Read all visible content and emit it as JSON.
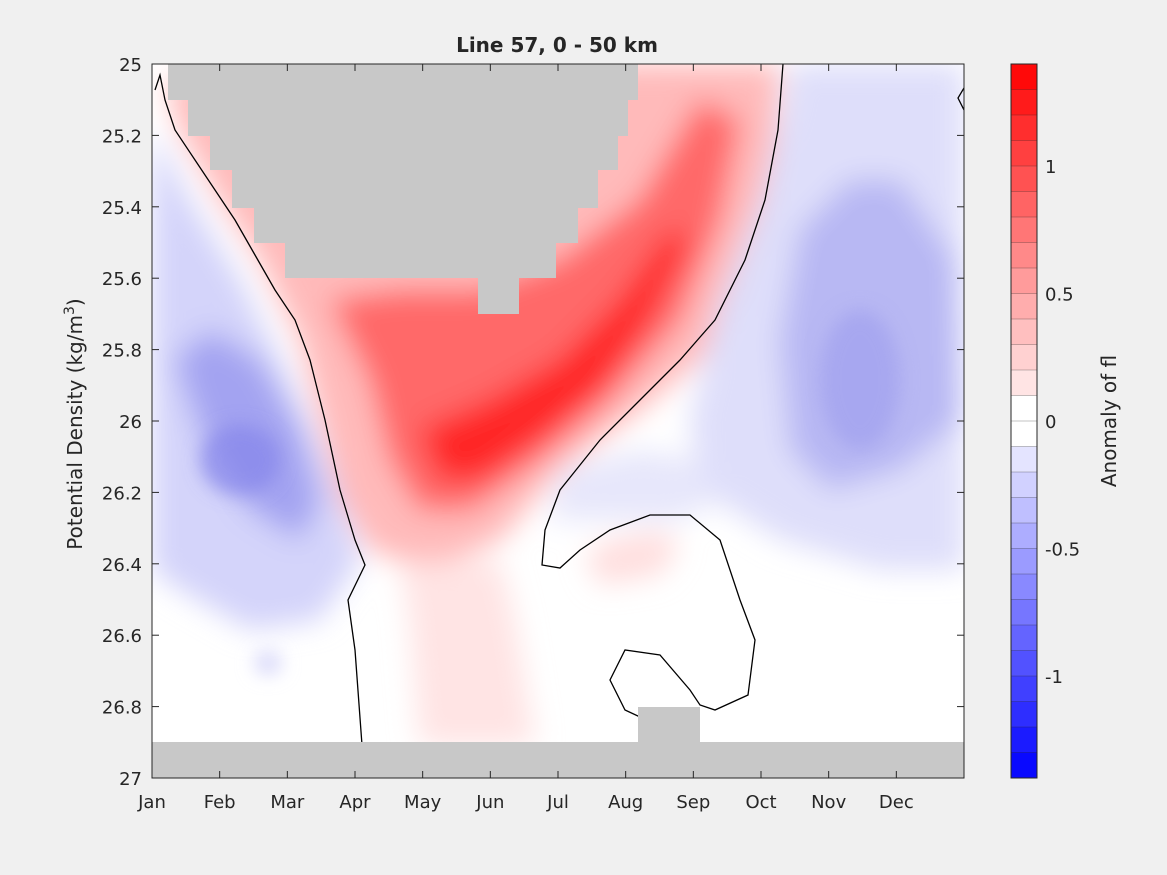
{
  "chart_data": {
    "type": "heatmap",
    "title": "Line 57, 0 - 50 km",
    "ylabel_main": "Potential Density (kg/m",
    "ylabel_sup": "3",
    "ylabel_close": ")",
    "x_ticks": [
      "Jan",
      "Feb",
      "Mar",
      "Apr",
      "May",
      "Jun",
      "Jul",
      "Aug",
      "Sep",
      "Oct",
      "Nov",
      "Dec"
    ],
    "x_domain": [
      1,
      13
    ],
    "y_ticks": [
      25,
      25.2,
      25.4,
      25.6,
      25.8,
      26,
      26.2,
      26.4,
      26.6,
      26.8,
      27
    ],
    "y_tick_labels": [
      "25",
      "25.2",
      "25.4",
      "25.6",
      "25.8",
      "26",
      "26.2",
      "26.4",
      "26.6",
      "26.8",
      "27"
    ],
    "ylim": [
      25,
      27
    ],
    "y_reversed": true,
    "colorbar": {
      "label": "Anomaly of fl",
      "range": [
        -1.4,
        1.4
      ],
      "levels": 28,
      "ticks": [
        1,
        0.5,
        0,
        -0.5,
        -1
      ],
      "tick_labels": [
        "1",
        "0.5",
        "0",
        "-0.5",
        "-1"
      ],
      "colors": {
        "negative": "#0000ff",
        "zero": "#ffffff",
        "positive": "#ff0000"
      }
    },
    "grid": false,
    "missing_color": "#c8c8c8",
    "features": [
      {
        "kind": "positive-core",
        "month": 6.0,
        "density": 26.1,
        "value": 1.3
      },
      {
        "kind": "positive-core",
        "month": 5.1,
        "density": 26.2,
        "value": 1.0
      },
      {
        "kind": "positive-core",
        "month": 6.6,
        "density": 26.0,
        "value": 1.2
      },
      {
        "kind": "positive-core",
        "month": 7.5,
        "density": 25.6,
        "value": 1.0
      },
      {
        "kind": "negative-core",
        "month": 2.3,
        "density": 26.1,
        "value": -0.5
      },
      {
        "kind": "negative-core",
        "month": 11.0,
        "density": 25.9,
        "value": -0.4
      }
    ]
  }
}
